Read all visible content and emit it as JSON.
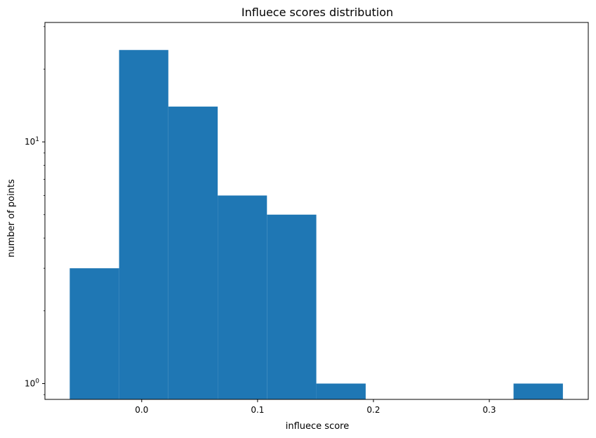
{
  "chart_data": {
    "type": "bar",
    "title": "Influece scores distribution",
    "xlabel": "influece score",
    "ylabel": "number of points",
    "yscale": "log",
    "grid": false,
    "legend": "none",
    "bar_color": "#1f77b4",
    "xlim": [
      -0.0835,
      0.3854
    ],
    "ylim": [
      0.86,
      31.2
    ],
    "x_ticks": [
      {
        "value": 0.0,
        "label": "0.0"
      },
      {
        "value": 0.1,
        "label": "0.1"
      },
      {
        "value": 0.2,
        "label": "0.2"
      },
      {
        "value": 0.3,
        "label": "0.3"
      }
    ],
    "y_ticks": [
      {
        "value": 1,
        "base": "10",
        "exp": "0"
      },
      {
        "value": 10,
        "base": "10",
        "exp": "1"
      }
    ],
    "bins": [
      {
        "x0": -0.0621,
        "x1": -0.0195,
        "count": 3
      },
      {
        "x0": -0.0195,
        "x1": 0.023,
        "count": 24
      },
      {
        "x0": 0.023,
        "x1": 0.0656,
        "count": 14
      },
      {
        "x0": 0.0656,
        "x1": 0.1081,
        "count": 6
      },
      {
        "x0": 0.1081,
        "x1": 0.1507,
        "count": 5
      },
      {
        "x0": 0.1507,
        "x1": 0.1933,
        "count": 1
      },
      {
        "x0": 0.1933,
        "x1": 0.2358,
        "count": 0
      },
      {
        "x0": 0.2358,
        "x1": 0.2784,
        "count": 0
      },
      {
        "x0": 0.2784,
        "x1": 0.3209,
        "count": 0
      },
      {
        "x0": 0.3209,
        "x1": 0.3635,
        "count": 1
      }
    ]
  }
}
